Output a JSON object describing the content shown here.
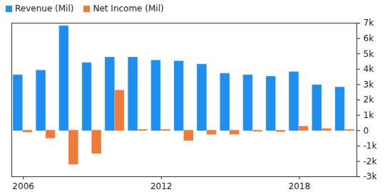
{
  "chart_data": {
    "type": "bar",
    "categories": [
      "2006",
      null,
      null,
      null,
      null,
      null,
      "2012",
      null,
      null,
      null,
      null,
      null,
      "2018",
      null,
      null
    ],
    "series": [
      {
        "name": "Revenue (Mil)",
        "color": "#1f8ef1",
        "values": [
          3600,
          3900,
          6800,
          4400,
          4750,
          4750,
          4550,
          4500,
          4300,
          3700,
          3600,
          3500,
          3800,
          2950,
          2800
        ]
      },
      {
        "name": "Net Income (Mil)",
        "color": "#f07a3a",
        "values": [
          -100,
          -500,
          -2200,
          -1500,
          2600,
          50,
          50,
          -650,
          -250,
          -250,
          -50,
          -80,
          250,
          100,
          50
        ]
      }
    ],
    "ylim": [
      -3000,
      7000
    ],
    "yticks": [
      {
        "value": -3000,
        "label": "-3k"
      },
      {
        "value": -2000,
        "label": "-2k"
      },
      {
        "value": -1000,
        "label": "-1k"
      },
      0,
      {
        "value": 1000,
        "label": "1k"
      },
      {
        "value": 2000,
        "label": "2k"
      },
      {
        "value": 3000,
        "label": "3k"
      },
      {
        "value": 4000,
        "label": "4k"
      },
      {
        "value": 5000,
        "label": "5k"
      },
      {
        "value": 6000,
        "label": "6k"
      },
      {
        "value": 7000,
        "label": "7k"
      }
    ],
    "grid": false,
    "legend": "top-left"
  }
}
